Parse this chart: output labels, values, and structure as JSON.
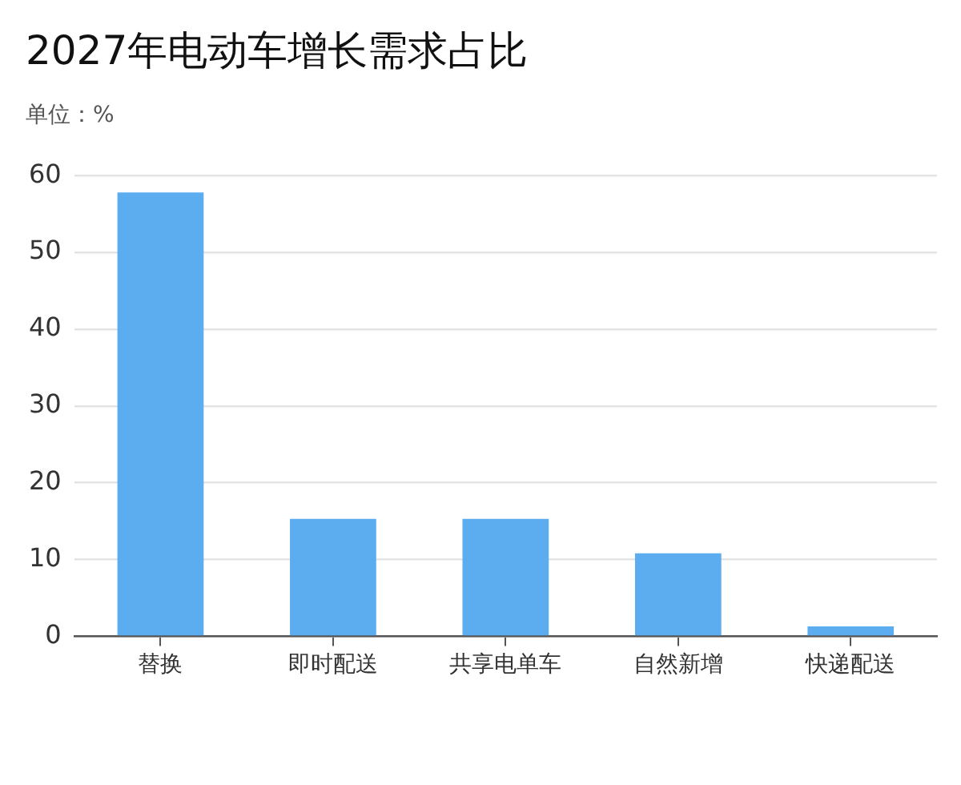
{
  "chart_data": {
    "type": "bar",
    "title": "2027年电动车增长需求占比",
    "subtitle": "单位：%",
    "categories": [
      "替换",
      "即时配送",
      "共享电单车",
      "自然新增",
      "快递配送"
    ],
    "values": [
      57.8,
      15.3,
      15.3,
      10.8,
      1.3
    ],
    "color": "#5badf0",
    "ylim": [
      0,
      60
    ],
    "yticks": [
      0,
      10,
      20,
      30,
      40,
      50,
      60
    ],
    "grid": "y",
    "legend": false
  }
}
